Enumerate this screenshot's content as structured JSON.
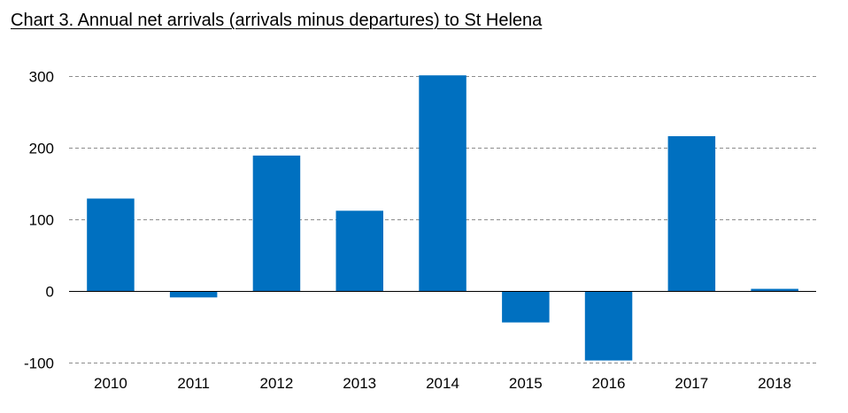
{
  "chart_data": {
    "type": "bar",
    "title": "Chart 3. Annual net arrivals (arrivals minus departures) to St Helena",
    "xlabel": "",
    "ylabel": "",
    "categories": [
      "2010",
      "2011",
      "2012",
      "2013",
      "2014",
      "2015",
      "2016",
      "2017",
      "2018"
    ],
    "series": [
      {
        "name": "Net arrivals",
        "color": "#0070C0",
        "values": [
          129,
          -9,
          189,
          112,
          301,
          -44,
          -97,
          216,
          3
        ]
      }
    ],
    "ylim": [
      -100,
      300
    ],
    "yticks": [
      -100,
      0,
      100,
      200,
      300
    ],
    "ytick_labels": [
      "-100",
      "0",
      "100",
      "200",
      "300"
    ],
    "grid": "dashed",
    "legend": "none"
  }
}
